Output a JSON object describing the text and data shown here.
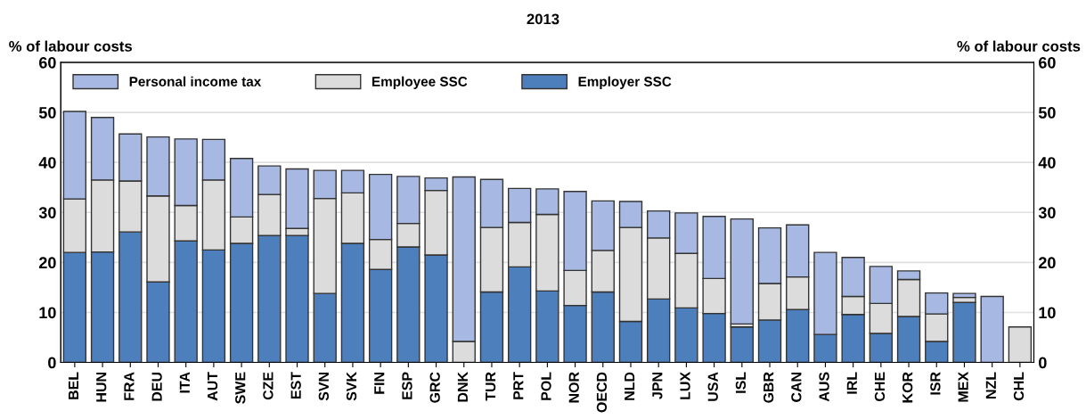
{
  "chart_data": {
    "type": "bar",
    "stacked": true,
    "title": "2013",
    "ylabel": "% of labour costs",
    "y2label": "% of labour costs",
    "categories": [
      "BEL",
      "HUN",
      "FRA",
      "DEU",
      "ITA",
      "AUT",
      "SWE",
      "CZE",
      "EST",
      "SVN",
      "SVK",
      "FIN",
      "ESP",
      "GRC",
      "DNK",
      "TUR",
      "PRT",
      "POL",
      "NOR",
      "OECD",
      "NLD",
      "JPN",
      "LUX",
      "USA",
      "ISL",
      "GBR",
      "CAN",
      "AUS",
      "IRL",
      "CHE",
      "KOR",
      "ISR",
      "MEX",
      "NZL",
      "CHL"
    ],
    "series": [
      {
        "name": "Employer SSC",
        "color": "#4d7fbc",
        "values": [
          22.0,
          22.1,
          26.1,
          16.1,
          24.3,
          22.5,
          23.8,
          25.4,
          25.4,
          13.8,
          23.8,
          18.6,
          23.1,
          21.5,
          0,
          14.1,
          19.1,
          14.3,
          11.4,
          14.1,
          8.2,
          12.7,
          10.9,
          9.8,
          7.1,
          8.5,
          10.6,
          5.6,
          9.6,
          5.8,
          9.2,
          4.2,
          12.0,
          0,
          0
        ]
      },
      {
        "name": "Employee SSC",
        "color": "#dcdcdc",
        "values": [
          10.7,
          14.4,
          10.2,
          17.2,
          7.1,
          14.0,
          5.3,
          8.2,
          1.4,
          19.0,
          10.1,
          6.0,
          4.7,
          12.9,
          4.2,
          12.9,
          8.9,
          15.3,
          7.0,
          8.3,
          18.8,
          12.2,
          10.9,
          7.0,
          0.6,
          7.3,
          6.5,
          0,
          3.6,
          6.0,
          7.4,
          5.5,
          1.0,
          0,
          7.1
        ]
      },
      {
        "name": "Personal income tax",
        "color": "#a7b8e2",
        "values": [
          17.5,
          12.5,
          9.4,
          11.8,
          13.3,
          8.1,
          11.7,
          5.7,
          11.9,
          5.6,
          4.5,
          13.0,
          9.4,
          2.5,
          32.9,
          9.6,
          6.8,
          5.1,
          15.8,
          9.9,
          5.2,
          5.4,
          8.1,
          12.4,
          21.0,
          11.1,
          10.4,
          16.4,
          7.8,
          7.4,
          1.7,
          4.2,
          0.8,
          13.2,
          0
        ]
      }
    ],
    "ylim": [
      0,
      60
    ],
    "yticks": [
      0,
      10,
      20,
      30,
      40,
      50,
      60
    ],
    "y2lim": [
      0,
      60
    ],
    "y2ticks": [
      0,
      10,
      20,
      30,
      40,
      50,
      60
    ],
    "grid": "y",
    "legend": "top left"
  }
}
